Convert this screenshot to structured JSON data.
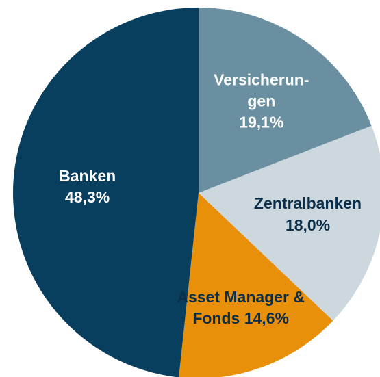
{
  "chart_data": {
    "type": "pie",
    "categories": [
      "Versicherun-gen",
      "Zentralbanken",
      "Asset Manager & Fonds",
      "Banken"
    ],
    "values": [
      19.1,
      18.0,
      14.6,
      48.3
    ],
    "value_labels": [
      "19,1%",
      "18,0%",
      "14,6%",
      "48,3%"
    ],
    "colors": [
      "#6a8fa0",
      "#cdd8de",
      "#e8900a",
      "#083f5e"
    ]
  }
}
